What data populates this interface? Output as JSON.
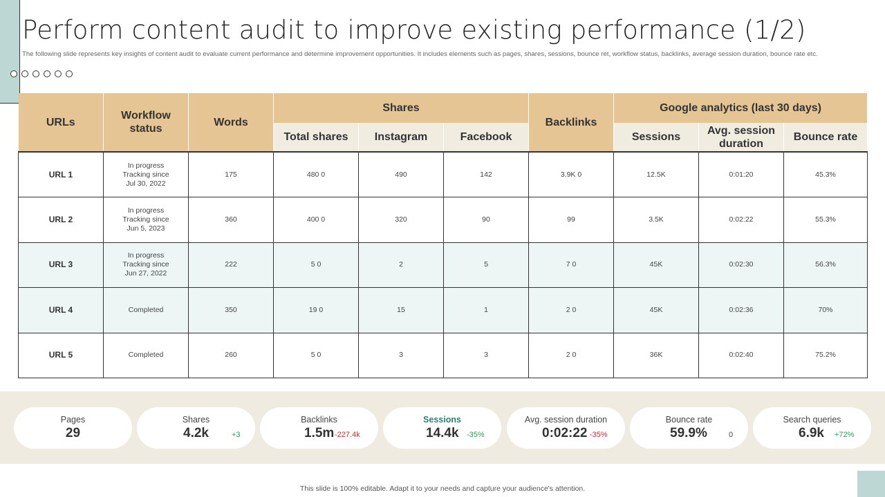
{
  "title": "Perform content audit to improve existing performance (1/2)",
  "subtitle": "The following slide represents key insights of content audit to evaluate current performance and determine improvement opportunities. It includes elements such as pages, shares, sessions, bounce ret, workflow status, backlinks, average session duration, bounce rate etc.",
  "table": {
    "headers": {
      "urls": "URLs",
      "workflow": "Workflow status",
      "words": "Words",
      "shares": "Shares",
      "total_shares": "Total shares",
      "instagram": "Instagram",
      "facebook": "Facebook",
      "backlinks": "Backlinks",
      "ga": "Google analytics (last 30 days)",
      "sessions": "Sessions",
      "avg_session": "Avg. session duration",
      "bounce": "Bounce rate"
    },
    "rows": [
      {
        "url": "URL 1",
        "status": "In progress",
        "tracking": "Tracking since",
        "date": "Jul 30, 2022",
        "words": "175",
        "total": "480  0",
        "instagram": "490",
        "facebook": "142",
        "backlinks": "3.9K  0",
        "sessions": "12.5K",
        "avg": "0:01:20",
        "bounce": "45.3%"
      },
      {
        "url": "URL 2",
        "status": "In progress",
        "tracking": "Tracking since",
        "date": "Jun 5, 2023",
        "words": "360",
        "total": "400  0",
        "instagram": "320",
        "facebook": "90",
        "backlinks": "99",
        "sessions": "3.5K",
        "avg": "0:02:22",
        "bounce": "55.3%"
      },
      {
        "url": "URL 3",
        "status": "In progress",
        "tracking": "Tracking since",
        "date": "Jun 27, 2022",
        "words": "222",
        "total": "5  0",
        "instagram": "2",
        "facebook": "5",
        "backlinks": "7  0",
        "sessions": "45K",
        "avg": "0:02:30",
        "bounce": "56.3%"
      },
      {
        "url": "URL 4",
        "status": "Completed",
        "tracking": "",
        "date": "",
        "words": "350",
        "total": "19  0",
        "instagram": "15",
        "facebook": "1",
        "backlinks": "2  0",
        "sessions": "45K",
        "avg": "0:02:36",
        "bounce": "70%"
      },
      {
        "url": "URL 5",
        "status": "Completed",
        "tracking": "",
        "date": "",
        "words": "260",
        "total": "5  0",
        "instagram": "3",
        "facebook": "3",
        "backlinks": "2  0",
        "sessions": "36K",
        "avg": "0:02:40",
        "bounce": "75.2%"
      }
    ]
  },
  "kpis": [
    {
      "label": "Pages",
      "value": "29",
      "delta": "",
      "tone": "neu"
    },
    {
      "label": "Shares",
      "value": "4.2k",
      "delta": "+3",
      "tone": "pos"
    },
    {
      "label": "Backlinks",
      "value": "1.5m",
      "delta": "-227.4k",
      "tone": "neg"
    },
    {
      "label": "Sessions",
      "value": "14.4k",
      "delta": "-35%",
      "tone": "pos"
    },
    {
      "label": "Avg. session duration",
      "value": "0:02:22",
      "delta": "-35%",
      "tone": "neg"
    },
    {
      "label": "Bounce rate",
      "value": "59.9%",
      "delta": "0",
      "tone": "neu"
    },
    {
      "label": "Search queries",
      "value": "6.9k",
      "delta": "+72%",
      "tone": "pos"
    }
  ],
  "footer": "This slide is 100% editable. Adapt it to your needs and capture your audience's attention.",
  "colors": {
    "header_gold": "#e4c593",
    "header_sub": "#f1ece0",
    "row_tint": "#eef6f5",
    "band": "#f0ebe0",
    "accent_teal": "#bcd7d4",
    "positive": "#2a9d5c",
    "negative": "#d02b2b"
  }
}
